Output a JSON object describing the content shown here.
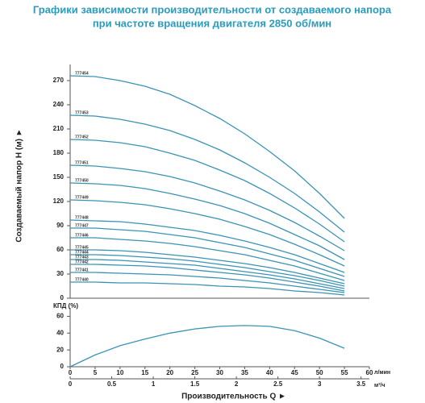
{
  "chart_data": [
    {
      "type": "line",
      "title": [
        "Графики зависимости производительности от создаваемого напора",
        "при частоте вращения двигателя 2850 об/мин"
      ],
      "ylabel": "Создаваемый напор H (м) ►",
      "color": "#3a93b5",
      "x": [
        0,
        5,
        10,
        15,
        20,
        25,
        30,
        35,
        40,
        45,
        50,
        55
      ],
      "xlim": [
        0,
        60
      ],
      "ylim": [
        0,
        290
      ],
      "yticks": [
        0,
        30,
        60,
        90,
        120,
        150,
        180,
        210,
        240,
        270
      ],
      "series": [
        {
          "name": "777454",
          "values": [
            276,
            275,
            270,
            263,
            253,
            239,
            223,
            204,
            182,
            158,
            130,
            99
          ]
        },
        {
          "name": "777453",
          "values": [
            227,
            226,
            222,
            216,
            208,
            197,
            184,
            168,
            150,
            130,
            107,
            82
          ]
        },
        {
          "name": "777452",
          "values": [
            197,
            196,
            193,
            188,
            180,
            171,
            159,
            146,
            130,
            112,
            92,
            70
          ]
        },
        {
          "name": "777451",
          "values": [
            165,
            164,
            161,
            157,
            151,
            143,
            133,
            122,
            109,
            94,
            77,
            59
          ]
        },
        {
          "name": "777450",
          "values": [
            143,
            142,
            140,
            136,
            130,
            123,
            115,
            105,
            93,
            79,
            65,
            48
          ]
        },
        {
          "name": "777449",
          "values": [
            122,
            121,
            119,
            116,
            111,
            105,
            98,
            89,
            79,
            67,
            54,
            40
          ]
        },
        {
          "name": "777448",
          "values": [
            97,
            96,
            95,
            92,
            88,
            84,
            78,
            71,
            63,
            54,
            43,
            32
          ]
        },
        {
          "name": "777447",
          "values": [
            87,
            87,
            85,
            83,
            79,
            75,
            69,
            63,
            55,
            47,
            37,
            27
          ]
        },
        {
          "name": "777446",
          "values": [
            75,
            75,
            73,
            71,
            68,
            64,
            59,
            54,
            47,
            40,
            31,
            22
          ]
        },
        {
          "name": "777445",
          "values": [
            60,
            60,
            59,
            57,
            54,
            51,
            47,
            43,
            38,
            32,
            25,
            18
          ]
        },
        {
          "name": "777444",
          "values": [
            54,
            54,
            53,
            51,
            49,
            46,
            42,
            38,
            33,
            28,
            22,
            15
          ]
        },
        {
          "name": "777443",
          "values": [
            48,
            48,
            47,
            45,
            43,
            41,
            37,
            33,
            29,
            24,
            18,
            12
          ]
        },
        {
          "name": "777442",
          "values": [
            42,
            42,
            41,
            40,
            38,
            35,
            32,
            29,
            25,
            20,
            15,
            9
          ]
        },
        {
          "name": "777441",
          "values": [
            32,
            32,
            31,
            30,
            29,
            27,
            25,
            22,
            19,
            15,
            11,
            7
          ]
        },
        {
          "name": "777440",
          "values": [
            20,
            20,
            19,
            19,
            18,
            17,
            15,
            14,
            12,
            9,
            7,
            4
          ]
        }
      ]
    },
    {
      "type": "line",
      "ylabel": "КПД (%)",
      "xlabel": "Производительность Q ►",
      "color": "#3a93b5",
      "x": [
        0,
        5,
        10,
        15,
        20,
        25,
        30,
        35,
        40,
        45,
        50,
        55
      ],
      "values": [
        0,
        14,
        25,
        33,
        40,
        45,
        48,
        49,
        48,
        43,
        34,
        22
      ],
      "xlim": [
        0,
        60
      ],
      "xticks": [
        0,
        5,
        10,
        15,
        20,
        25,
        30,
        35,
        40,
        45,
        50,
        55,
        60
      ],
      "xunit": "л/мин",
      "x2lim": [
        0,
        3.6
      ],
      "x2ticks": [
        0,
        0.5,
        1,
        1.5,
        2,
        2.5,
        3,
        3.5
      ],
      "x2unit": "м³/ч",
      "ylim": [
        0,
        70
      ],
      "yticks": [
        0,
        20,
        40,
        60
      ]
    }
  ]
}
